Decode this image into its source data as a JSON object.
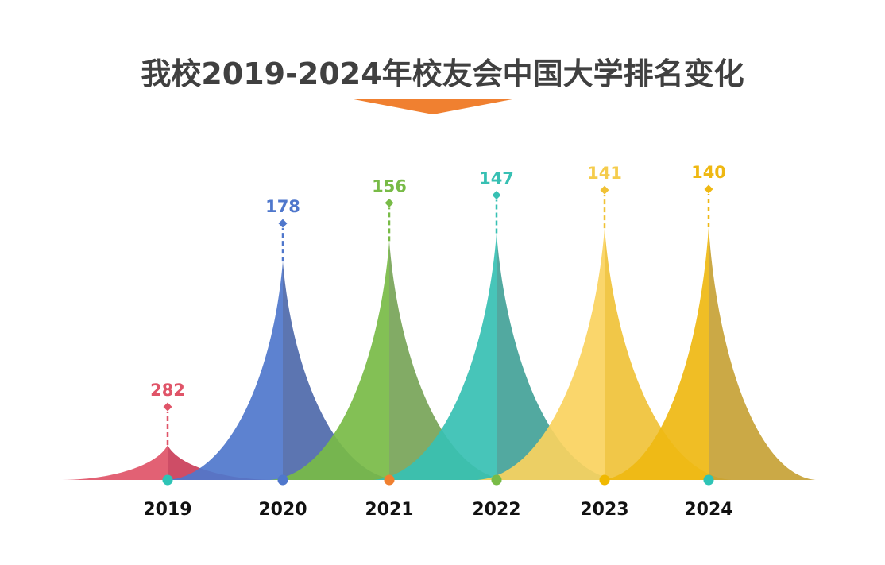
{
  "chart_data": {
    "type": "area",
    "title": "我校2019-2024年校友会中国大学排名变化",
    "categories": [
      "2019",
      "2020",
      "2021",
      "2022",
      "2023",
      "2024"
    ],
    "values": [
      282,
      178,
      156,
      147,
      141,
      140
    ],
    "xlabel": "",
    "ylabel": "",
    "grid": false,
    "legend": "none",
    "colors": [
      "#e05468",
      "#4f77cc",
      "#78bb47",
      "#37c0b3",
      "#fad25e",
      "#efb812"
    ],
    "dark_colors": [
      "#c93a55",
      "#4a66a8",
      "#74a254",
      "#3fa096",
      "#f0c134",
      "#c5a032"
    ],
    "dot_colors": [
      "#2ec4b6",
      "#4f77cc",
      "#f08030",
      "#78bb47",
      "#f0b800",
      "#2ec4b6"
    ],
    "arrow_color": "#f08030"
  }
}
